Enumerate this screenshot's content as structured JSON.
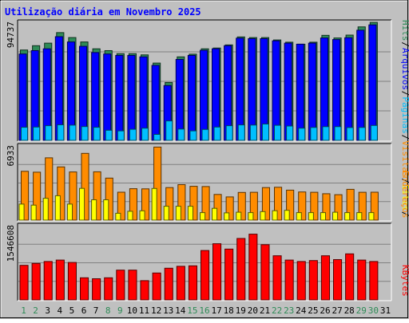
{
  "chart_data": {
    "type": "bar",
    "title": "Utilização diária em Novembro 2025",
    "x": [
      1,
      2,
      3,
      4,
      5,
      6,
      7,
      8,
      9,
      10,
      11,
      12,
      13,
      14,
      15,
      16,
      17,
      18,
      19,
      20,
      21,
      22,
      23,
      24,
      25,
      26,
      27,
      28,
      29,
      30,
      31
    ],
    "x_labels": [
      "1",
      "2",
      "3",
      "4",
      "5",
      "6",
      "7",
      "8",
      "9",
      "10",
      "11",
      "12",
      "13",
      "14",
      "15",
      "16",
      "17",
      "18",
      "19",
      "20",
      "21",
      "22",
      "23",
      "24",
      "25",
      "26",
      "27",
      "28",
      "29",
      "30",
      "31"
    ],
    "weekend_days": [
      1,
      2,
      8,
      9,
      15,
      16,
      22,
      23,
      29,
      30
    ],
    "panels": [
      {
        "id": "hits-files-pages",
        "ymax_label": "94737",
        "ymax": 94737,
        "series": [
          {
            "name": "Hits",
            "color": "#2e8b57",
            "values": [
              72500,
              76000,
              78000,
              86500,
              82500,
              79000,
              73500,
              72000,
              69600,
              69600,
              68600,
              62000,
              46500,
              67000,
              69200,
              73500,
              74100,
              76600,
              83000,
              82500,
              82500,
              80600,
              78800,
              77200,
              78800,
              84300,
              82200,
              84500,
              91100,
              94700,
              0
            ]
          },
          {
            "name": "Arquivos",
            "color": "#0000ff",
            "values": [
              69300,
              72000,
              73500,
              83200,
              79000,
              75500,
              70500,
              69300,
              68200,
              68200,
              67000,
              60200,
              44000,
              65000,
              68200,
              72300,
              73500,
              76000,
              82000,
              81600,
              81600,
              79900,
              78000,
              77200,
              78000,
              82200,
              80900,
              82400,
              88400,
              92700,
              0
            ]
          },
          {
            "name": "Páginas",
            "color": "#00bfff",
            "values": [
              10500,
              10700,
              11800,
              12500,
              12200,
              11100,
              10500,
              8100,
              7600,
              8900,
              9800,
              4800,
              15600,
              9100,
              7600,
              8800,
              10700,
              11800,
              12400,
              12300,
              13100,
              12100,
              11500,
              9800,
              10400,
              11000,
              11000,
              10300,
              10400,
              12000,
              0
            ]
          }
        ]
      },
      {
        "id": "visits",
        "ymax_label": "6933",
        "ymax": 6933,
        "series": [
          {
            "name": "Visitas",
            "color": "#ff8c00",
            "values": [
              4560,
              4480,
              5820,
              4970,
              4500,
              6240,
              4520,
              3930,
              2610,
              2940,
              2920,
              6830,
              3040,
              3320,
              3160,
              3140,
              2400,
              2170,
              2590,
              2600,
              3040,
              3070,
              2800,
              2630,
              2600,
              2470,
              2380,
              2880,
              2600,
              2610,
              0
            ]
          },
          {
            "name": "Sites",
            "color": "#ffff00",
            "values": [
              1500,
              1400,
              2040,
              2280,
              1500,
              2970,
              1900,
              1900,
              640,
              830,
              870,
              2960,
              1300,
              1300,
              1300,
              700,
              1100,
              680,
              740,
              700,
              800,
              880,
              920,
              700,
              700,
              700,
              740,
              700,
              700,
              700,
              0
            ]
          }
        ]
      },
      {
        "id": "kbytes",
        "ymax_label": "1546608",
        "ymax": 1546608,
        "series": [
          {
            "name": "KBytes",
            "color": "#ff0000",
            "values": [
              720000,
              760000,
              800000,
              830000,
              780000,
              460000,
              440000,
              460000,
              620000,
              620000,
              400000,
              560000,
              660000,
              700000,
              710000,
              1030000,
              1170000,
              1060000,
              1280000,
              1370000,
              1150000,
              920000,
              830000,
              800000,
              820000,
              920000,
              840000,
              960000,
              830000,
              800000,
              0
            ]
          }
        ]
      }
    ],
    "right_labels": [
      {
        "text": "Hits",
        "color": "#2e8b57"
      },
      {
        "text": "/",
        "color": "#000000"
      },
      {
        "text": "Arquivos",
        "color": "#0000ff"
      },
      {
        "text": "/",
        "color": "#000000"
      },
      {
        "text": "Páginas",
        "color": "#00bfff"
      },
      {
        "text": "/",
        "color": "#000000"
      },
      {
        "text": "Visitas",
        "color": "#ff8c00"
      },
      {
        "text": "/",
        "color": "#000000"
      },
      {
        "text": "Sites",
        "color": "#ffff00"
      },
      {
        "text": "/",
        "color": "#000000"
      },
      {
        "text": "Endereços",
        "color": "#ff8c00"
      },
      {
        "text": "KBytes",
        "color": "#ff0000"
      }
    ],
    "colors": {
      "background": "#c0c0c0",
      "title": "#0000ff",
      "weekday_label": "#000000",
      "weekend_label": "#2e8b57",
      "grid": "#808080"
    },
    "grid": true
  }
}
